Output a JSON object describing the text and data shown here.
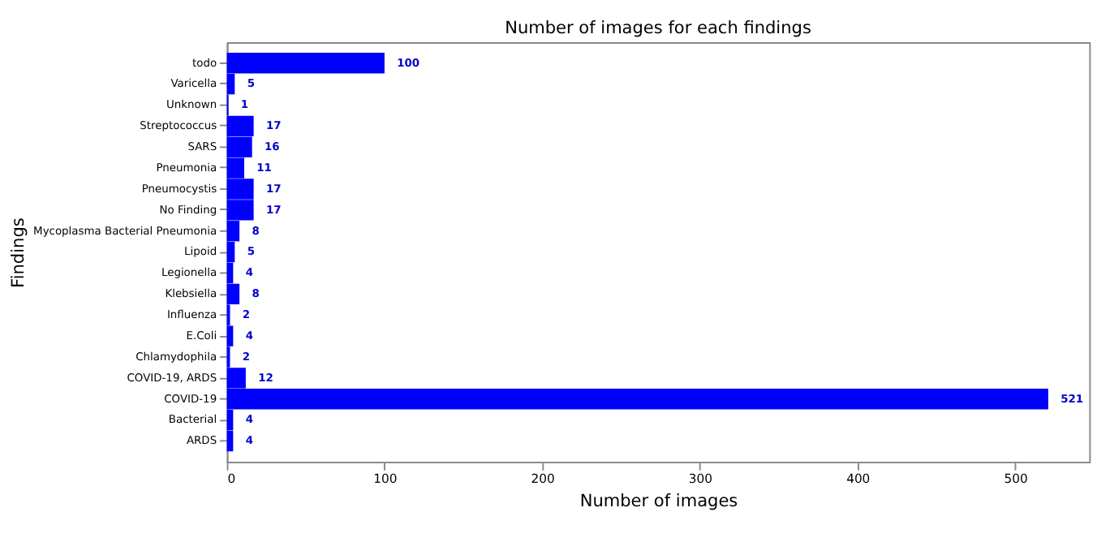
{
  "chart_data": {
    "type": "bar",
    "orientation": "horizontal",
    "title": "Number of images for each findings",
    "xlabel": "Number of images",
    "ylabel": "Findings",
    "categories": [
      "todo",
      "Varicella",
      "Unknown",
      "Streptococcus",
      "SARS",
      "Pneumonia",
      "Pneumocystis",
      "No Finding",
      "Mycoplasma Bacterial Pneumonia",
      "Lipoid",
      "Legionella",
      "Klebsiella",
      "Influenza",
      "E.Coli",
      "Chlamydophila",
      "COVID-19, ARDS",
      "COVID-19",
      "Bacterial",
      "ARDS"
    ],
    "values": [
      100,
      5,
      1,
      17,
      16,
      11,
      17,
      17,
      8,
      5,
      4,
      8,
      2,
      4,
      2,
      12,
      521,
      4,
      4
    ],
    "color": "#0000ff",
    "xlim": [
      0,
      547
    ],
    "xticks": [
      0,
      100,
      200,
      300,
      400,
      500
    ],
    "grid": false,
    "data_labels": true
  }
}
